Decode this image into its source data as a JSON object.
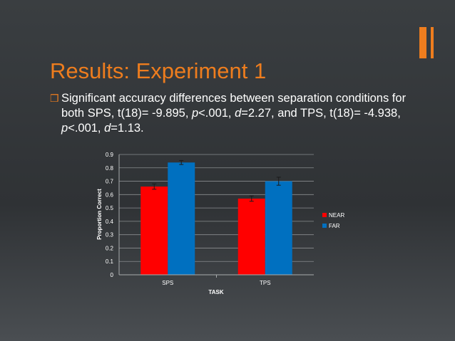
{
  "slide": {
    "title": "Results: Experiment 1",
    "bullet": {
      "p1": "Significant accuracy differences between separation conditions for both SPS, t(18)= -9.895, ",
      "p": "p",
      "p2": "<.001, ",
      "d": "d",
      "p3": "=2.27, and TPS, t(18)= -4.938, ",
      "p_b": "p",
      "p4": "<.001, ",
      "d_b": "d",
      "p5": "=1.13."
    }
  },
  "colors": {
    "accent": "#ee7d1e",
    "near": "#ff0000",
    "far": "#0070c0",
    "background": "#33373a"
  },
  "chart_data": {
    "type": "bar",
    "categories": [
      "SPS",
      "TPS"
    ],
    "series": [
      {
        "name": "NEAR",
        "color": "#ff0000",
        "values": [
          0.66,
          0.57
        ],
        "error": [
          0.02,
          0.02
        ]
      },
      {
        "name": "FAR",
        "color": "#0070c0",
        "values": [
          0.84,
          0.7
        ],
        "error": [
          0.015,
          0.03
        ]
      }
    ],
    "xlabel": "TASK",
    "ylabel": "Proportion Correct",
    "ylim": [
      0,
      0.9
    ],
    "yticks": [
      "0",
      "0.1",
      "0.2",
      "0.3",
      "0.4",
      "0.5",
      "0.6",
      "0.7",
      "0.8",
      "0.9"
    ],
    "grid": true,
    "legend": "right"
  }
}
